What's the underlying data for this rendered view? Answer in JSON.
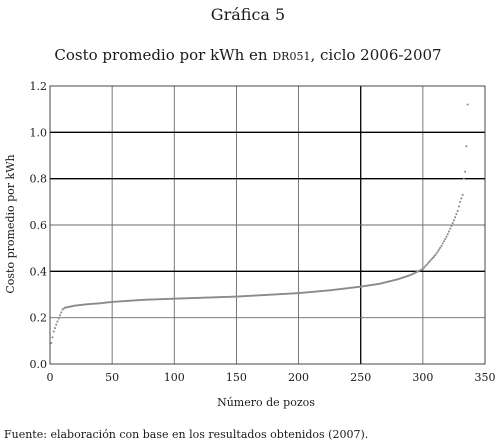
{
  "figure": {
    "label": "Gráfica 5",
    "source_note": "Fuente: elaboración con base en los resultados obtenidos (2007)."
  },
  "chart_data": {
    "type": "scatter",
    "title_pre": "Costo promedio por kWh en ",
    "title_code": "DR051",
    "title_post": ", ciclo 2006-2007",
    "xlabel": "Número de pozos",
    "ylabel": "Costo promedio por kWh",
    "xlim": [
      0,
      350
    ],
    "ylim": [
      0,
      1.2
    ],
    "x_ticks": [
      0,
      50,
      100,
      150,
      200,
      250,
      300,
      350
    ],
    "y_ticks": [
      0.0,
      0.2,
      0.4,
      0.6,
      0.8,
      1.0,
      1.2
    ],
    "y_tick_labels": [
      "0.0",
      "0.2",
      "0.4",
      "0.6",
      "0.8",
      "1.0",
      "1.2"
    ],
    "grid": true,
    "emphasized_gridlines": {
      "x": [
        250
      ],
      "y": [
        0.4,
        0.8,
        1.0
      ]
    },
    "series_color": "#8a8a8a",
    "curve_control_points": [
      [
        1,
        0.09
      ],
      [
        3,
        0.14
      ],
      [
        5,
        0.17
      ],
      [
        8,
        0.21
      ],
      [
        10,
        0.235
      ],
      [
        12,
        0.243
      ],
      [
        20,
        0.252
      ],
      [
        30,
        0.258
      ],
      [
        40,
        0.262
      ],
      [
        50,
        0.268
      ],
      [
        75,
        0.277
      ],
      [
        100,
        0.282
      ],
      [
        150,
        0.291
      ],
      [
        200,
        0.306
      ],
      [
        225,
        0.318
      ],
      [
        250,
        0.334
      ],
      [
        265,
        0.346
      ],
      [
        280,
        0.366
      ],
      [
        290,
        0.384
      ],
      [
        300,
        0.41
      ],
      [
        305,
        0.44
      ],
      [
        310,
        0.47
      ],
      [
        315,
        0.51
      ],
      [
        320,
        0.56
      ],
      [
        325,
        0.62
      ],
      [
        328,
        0.66
      ],
      [
        330,
        0.7
      ],
      [
        332,
        0.73
      ],
      [
        333,
        0.8
      ],
      [
        334,
        0.83
      ],
      [
        335,
        0.94
      ],
      [
        336,
        1.12
      ]
    ]
  }
}
